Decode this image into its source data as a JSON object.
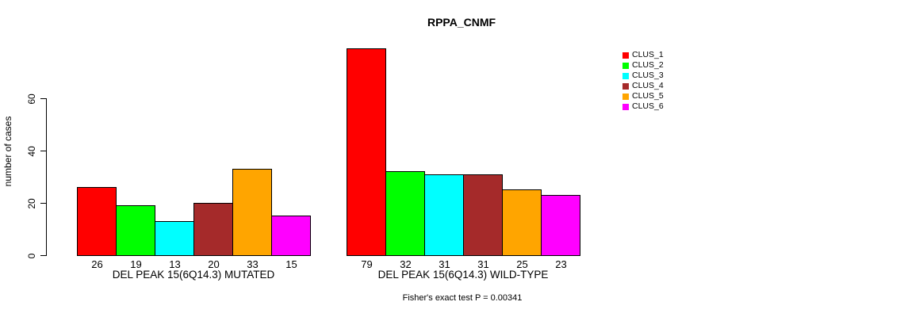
{
  "chart_data": {
    "type": "bar",
    "title": "RPPA_CNMF",
    "ylabel": "number of cases",
    "yticks": [
      0,
      20,
      40,
      60
    ],
    "ylim": [
      0,
      79
    ],
    "grid": false,
    "legend_position": "right-outside",
    "clusters": [
      {
        "name": "CLUS_1",
        "color": "#FF0000"
      },
      {
        "name": "CLUS_2",
        "color": "#00FF00"
      },
      {
        "name": "CLUS_3",
        "color": "#00FFFF"
      },
      {
        "name": "CLUS_4",
        "color": "#A52A2A"
      },
      {
        "name": "CLUS_5",
        "color": "#FFA500"
      },
      {
        "name": "CLUS_6",
        "color": "#FF00FF"
      }
    ],
    "groups": [
      {
        "label": "DEL PEAK 15(6Q14.3) MUTATED",
        "values": [
          26,
          19,
          13,
          20,
          33,
          15
        ]
      },
      {
        "label": "DEL PEAK 15(6Q14.3) WILD-TYPE",
        "values": [
          79,
          32,
          31,
          31,
          25,
          23
        ]
      }
    ],
    "footnote": "Fisher's exact test P = 0.00341"
  }
}
